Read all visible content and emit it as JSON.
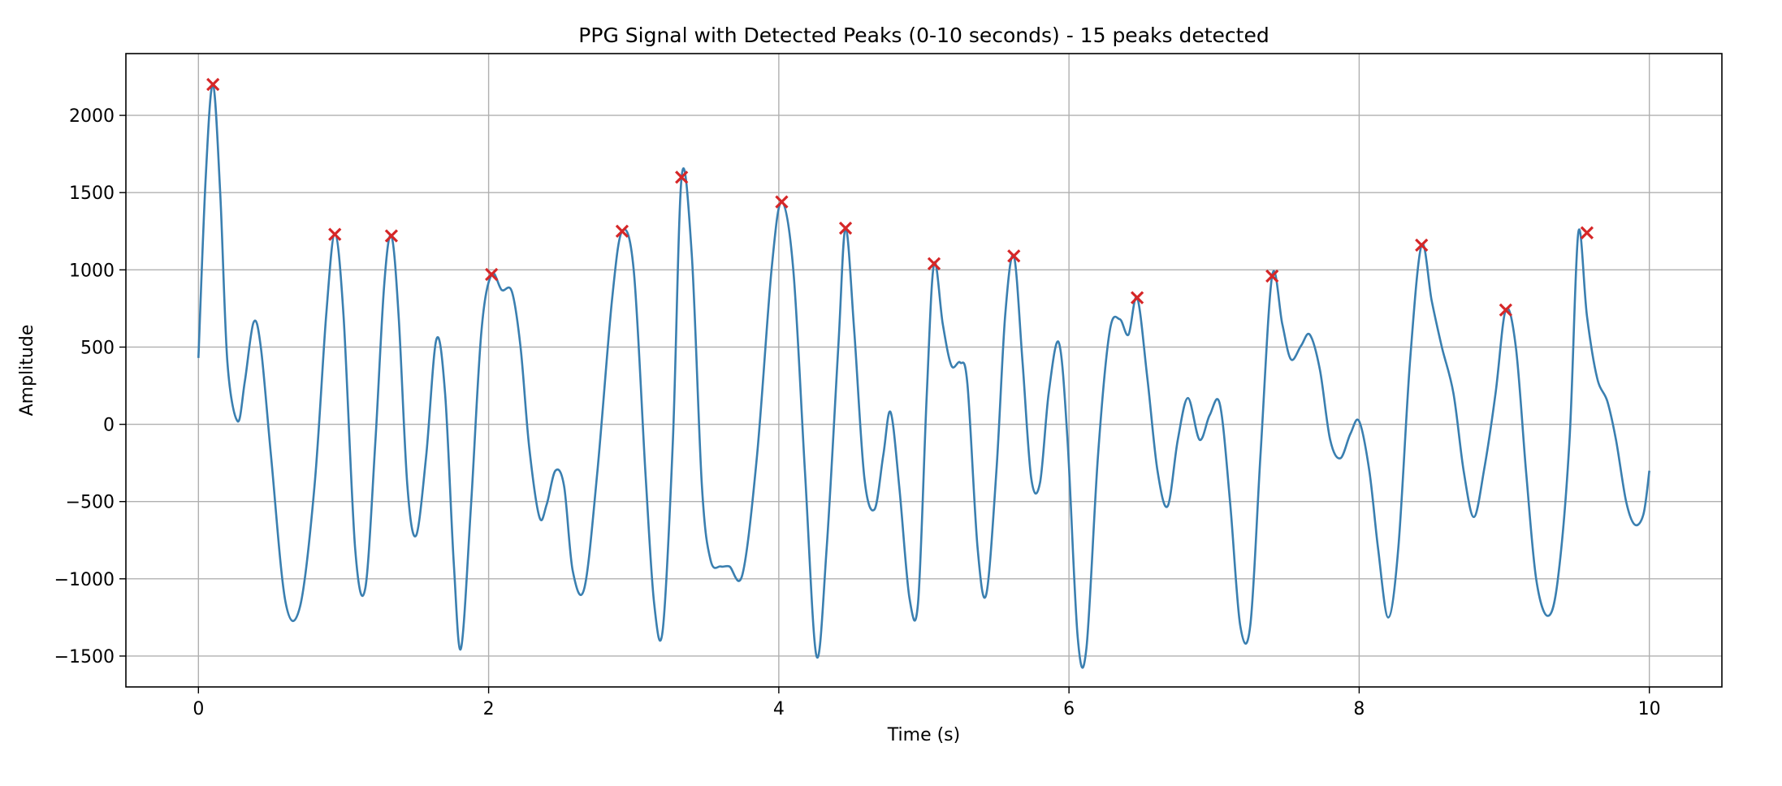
{
  "chart_data": {
    "type": "line",
    "title": "PPG Signal with Detected Peaks (0-10 seconds) - 15 peaks detected",
    "xlabel": "Time (s)",
    "ylabel": "Amplitude",
    "xlim": [
      -0.5,
      10.5
    ],
    "ylim": [
      -1700,
      2400
    ],
    "xticks": [
      0,
      2,
      4,
      6,
      8,
      10
    ],
    "yticks": [
      -1500,
      -1000,
      -500,
      0,
      500,
      1000,
      1500,
      2000
    ],
    "xtick_labels": [
      "0",
      "2",
      "4",
      "6",
      "8",
      "10"
    ],
    "ytick_labels": [
      "−1500",
      "−1000",
      "−500",
      "0",
      "500",
      "1000",
      "1500",
      "2000"
    ],
    "grid": true,
    "colors": {
      "signal": "#3a7fb0",
      "peaks": "#d62728"
    },
    "series": [
      {
        "kind": "line",
        "x": [
          0.0,
          0.05,
          0.1,
          0.15,
          0.2,
          0.27,
          0.32,
          0.38,
          0.43,
          0.5,
          0.6,
          0.7,
          0.8,
          0.88,
          0.94,
          1.0,
          1.08,
          1.15,
          1.22,
          1.28,
          1.33,
          1.38,
          1.44,
          1.5,
          1.57,
          1.64,
          1.7,
          1.76,
          1.81,
          1.88,
          1.95,
          2.02,
          2.09,
          2.16,
          2.22,
          2.28,
          2.35,
          2.4,
          2.46,
          2.52,
          2.58,
          2.66,
          2.75,
          2.85,
          2.92,
          3.0,
          3.08,
          3.14,
          3.2,
          3.27,
          3.33,
          3.4,
          3.47,
          3.53,
          3.6,
          3.66,
          3.75,
          3.85,
          3.95,
          4.02,
          4.1,
          4.18,
          4.26,
          4.33,
          4.41,
          4.46,
          4.52,
          4.59,
          4.66,
          4.72,
          4.77,
          4.83,
          4.9,
          4.96,
          5.02,
          5.07,
          5.13,
          5.19,
          5.25,
          5.3,
          5.37,
          5.43,
          5.5,
          5.56,
          5.62,
          5.68,
          5.74,
          5.8,
          5.86,
          5.93,
          5.99,
          6.06,
          6.12,
          6.2,
          6.28,
          6.35,
          6.41,
          6.47,
          6.54,
          6.61,
          6.68,
          6.75,
          6.82,
          6.9,
          6.97,
          7.04,
          7.11,
          7.18,
          7.25,
          7.32,
          7.4,
          7.47,
          7.53,
          7.6,
          7.66,
          7.73,
          7.8,
          7.87,
          7.94,
          8.0,
          8.07,
          8.13,
          8.2,
          8.27,
          8.35,
          8.43,
          8.5,
          8.57,
          8.65,
          8.72,
          8.79,
          8.86,
          8.94,
          9.01,
          9.08,
          9.15,
          9.22,
          9.3,
          9.37,
          9.45,
          9.51,
          9.57,
          9.64,
          9.71,
          9.77,
          9.84,
          9.9,
          9.96,
          10.0
        ],
        "y": [
          430,
          1600,
          2200,
          1500,
          400,
          20,
          280,
          660,
          500,
          -200,
          -1150,
          -1180,
          -400,
          700,
          1230,
          700,
          -800,
          -1060,
          -100,
          900,
          1220,
          700,
          -400,
          -720,
          -200,
          550,
          200,
          -900,
          -1450,
          -500,
          600,
          970,
          870,
          860,
          500,
          -150,
          -600,
          -520,
          -300,
          -400,
          -950,
          -1060,
          -300,
          800,
          1250,
          1000,
          -300,
          -1150,
          -1330,
          -100,
          1600,
          1100,
          -400,
          -880,
          -920,
          -920,
          -970,
          -200,
          1000,
          1440,
          1000,
          -300,
          -1500,
          -800,
          500,
          1270,
          600,
          -350,
          -550,
          -200,
          80,
          -400,
          -1120,
          -1150,
          200,
          1040,
          650,
          380,
          400,
          260,
          -800,
          -1100,
          -300,
          700,
          1090,
          400,
          -350,
          -380,
          200,
          530,
          -100,
          -1380,
          -1450,
          -200,
          600,
          680,
          580,
          820,
          300,
          -300,
          -530,
          -100,
          170,
          -100,
          60,
          130,
          -500,
          -1300,
          -1300,
          -200,
          960,
          650,
          420,
          510,
          580,
          350,
          -100,
          -220,
          -60,
          20,
          -300,
          -800,
          -1250,
          -800,
          400,
          1160,
          800,
          500,
          200,
          -300,
          -600,
          -300,
          200,
          740,
          500,
          -300,
          -1000,
          -1240,
          -1000,
          -100,
          1240,
          700,
          300,
          150,
          -100,
          -500,
          -650,
          -580,
          -300
        ]
      },
      {
        "kind": "peaks",
        "x": [
          0.1,
          0.94,
          1.33,
          2.02,
          2.92,
          3.33,
          4.02,
          4.46,
          5.07,
          5.62,
          6.47,
          7.4,
          8.43,
          9.01,
          9.57
        ],
        "y": [
          2200,
          1230,
          1220,
          970,
          1250,
          1600,
          1440,
          1270,
          1040,
          1090,
          820,
          960,
          1160,
          740,
          1240
        ]
      }
    ]
  }
}
